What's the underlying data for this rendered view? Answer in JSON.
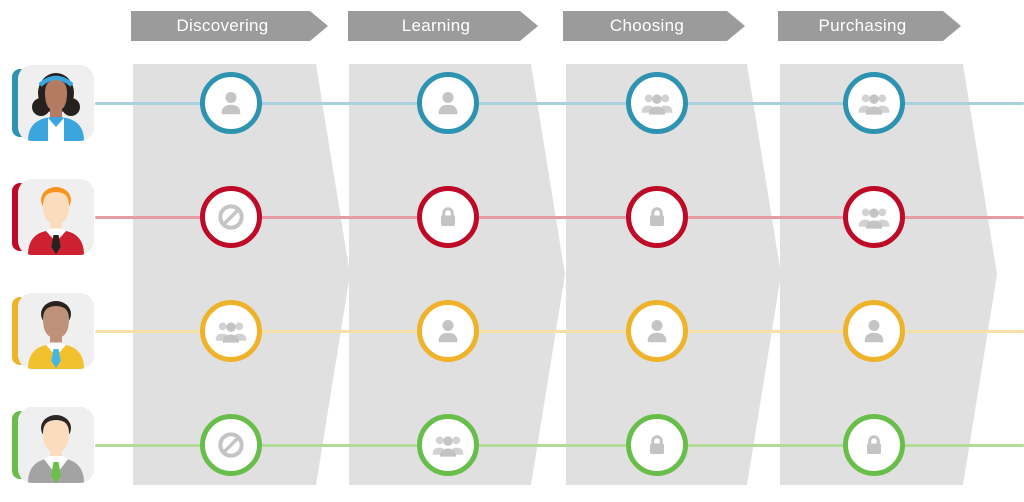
{
  "stages": [
    {
      "label": "Discovering"
    },
    {
      "label": "Learning"
    },
    {
      "label": "Choosing"
    },
    {
      "label": "Purchasing"
    }
  ],
  "personas": [
    {
      "id": "persona-blue",
      "accent_color": "#2D93B0",
      "line_color": "#A9D0DE",
      "avatar": {
        "style": "female",
        "hair": "#26211E",
        "skin": "#B57B62",
        "shirt": "#3BA6DE",
        "headband": "#3BA6DE",
        "chest": "#FFFFFF"
      },
      "stage_access": [
        "person",
        "person",
        "group",
        "group"
      ]
    },
    {
      "id": "persona-red",
      "accent_color": "#BE0A26",
      "line_color": "#E59CA2",
      "avatar": {
        "style": "male",
        "hair": "#F7941E",
        "skin": "#FBDCBD",
        "shirt": "#CD2030",
        "collar": "#FFFFFF",
        "tie": "#27221F"
      },
      "stage_access": [
        "blocked",
        "lock",
        "lock",
        "group"
      ]
    },
    {
      "id": "persona-yellow",
      "accent_color": "#EFB32B",
      "line_color": "#F4DFA6",
      "avatar": {
        "style": "male",
        "hair": "#27221F",
        "skin": "#BE9278",
        "shirt": "#F2C12E",
        "collar": "#FFFFFF",
        "tie": "#45B6E8"
      },
      "stage_access": [
        "group",
        "person",
        "person",
        "person"
      ]
    },
    {
      "id": "persona-green",
      "accent_color": "#69BE4B",
      "line_color": "#B2DB97",
      "avatar": {
        "style": "suit",
        "hair": "#2B2523",
        "skin": "#FBDCBD",
        "shirt": "#A3A3A3",
        "collar": "#FFFFFF",
        "tie": "#6CBF4B"
      },
      "stage_access": [
        "blocked",
        "group",
        "lock",
        "lock"
      ]
    }
  ],
  "icon_names": {
    "person": "single-user-icon",
    "group": "user-group-icon",
    "lock": "lock-icon",
    "blocked": "no-entry-icon"
  },
  "colors": {
    "stage_banner": "#9B9B9B",
    "stage_banner_text": "#FFFFFF",
    "column_bg": "#E0E0E0",
    "icon_gray": "#C4C4C4",
    "icon_gray_back": "#D2D2D2",
    "circle_bg": "#FFFFFF",
    "avatar_card_bg": "#EFEFEF",
    "canvas_bg": "#FFFFFF"
  }
}
